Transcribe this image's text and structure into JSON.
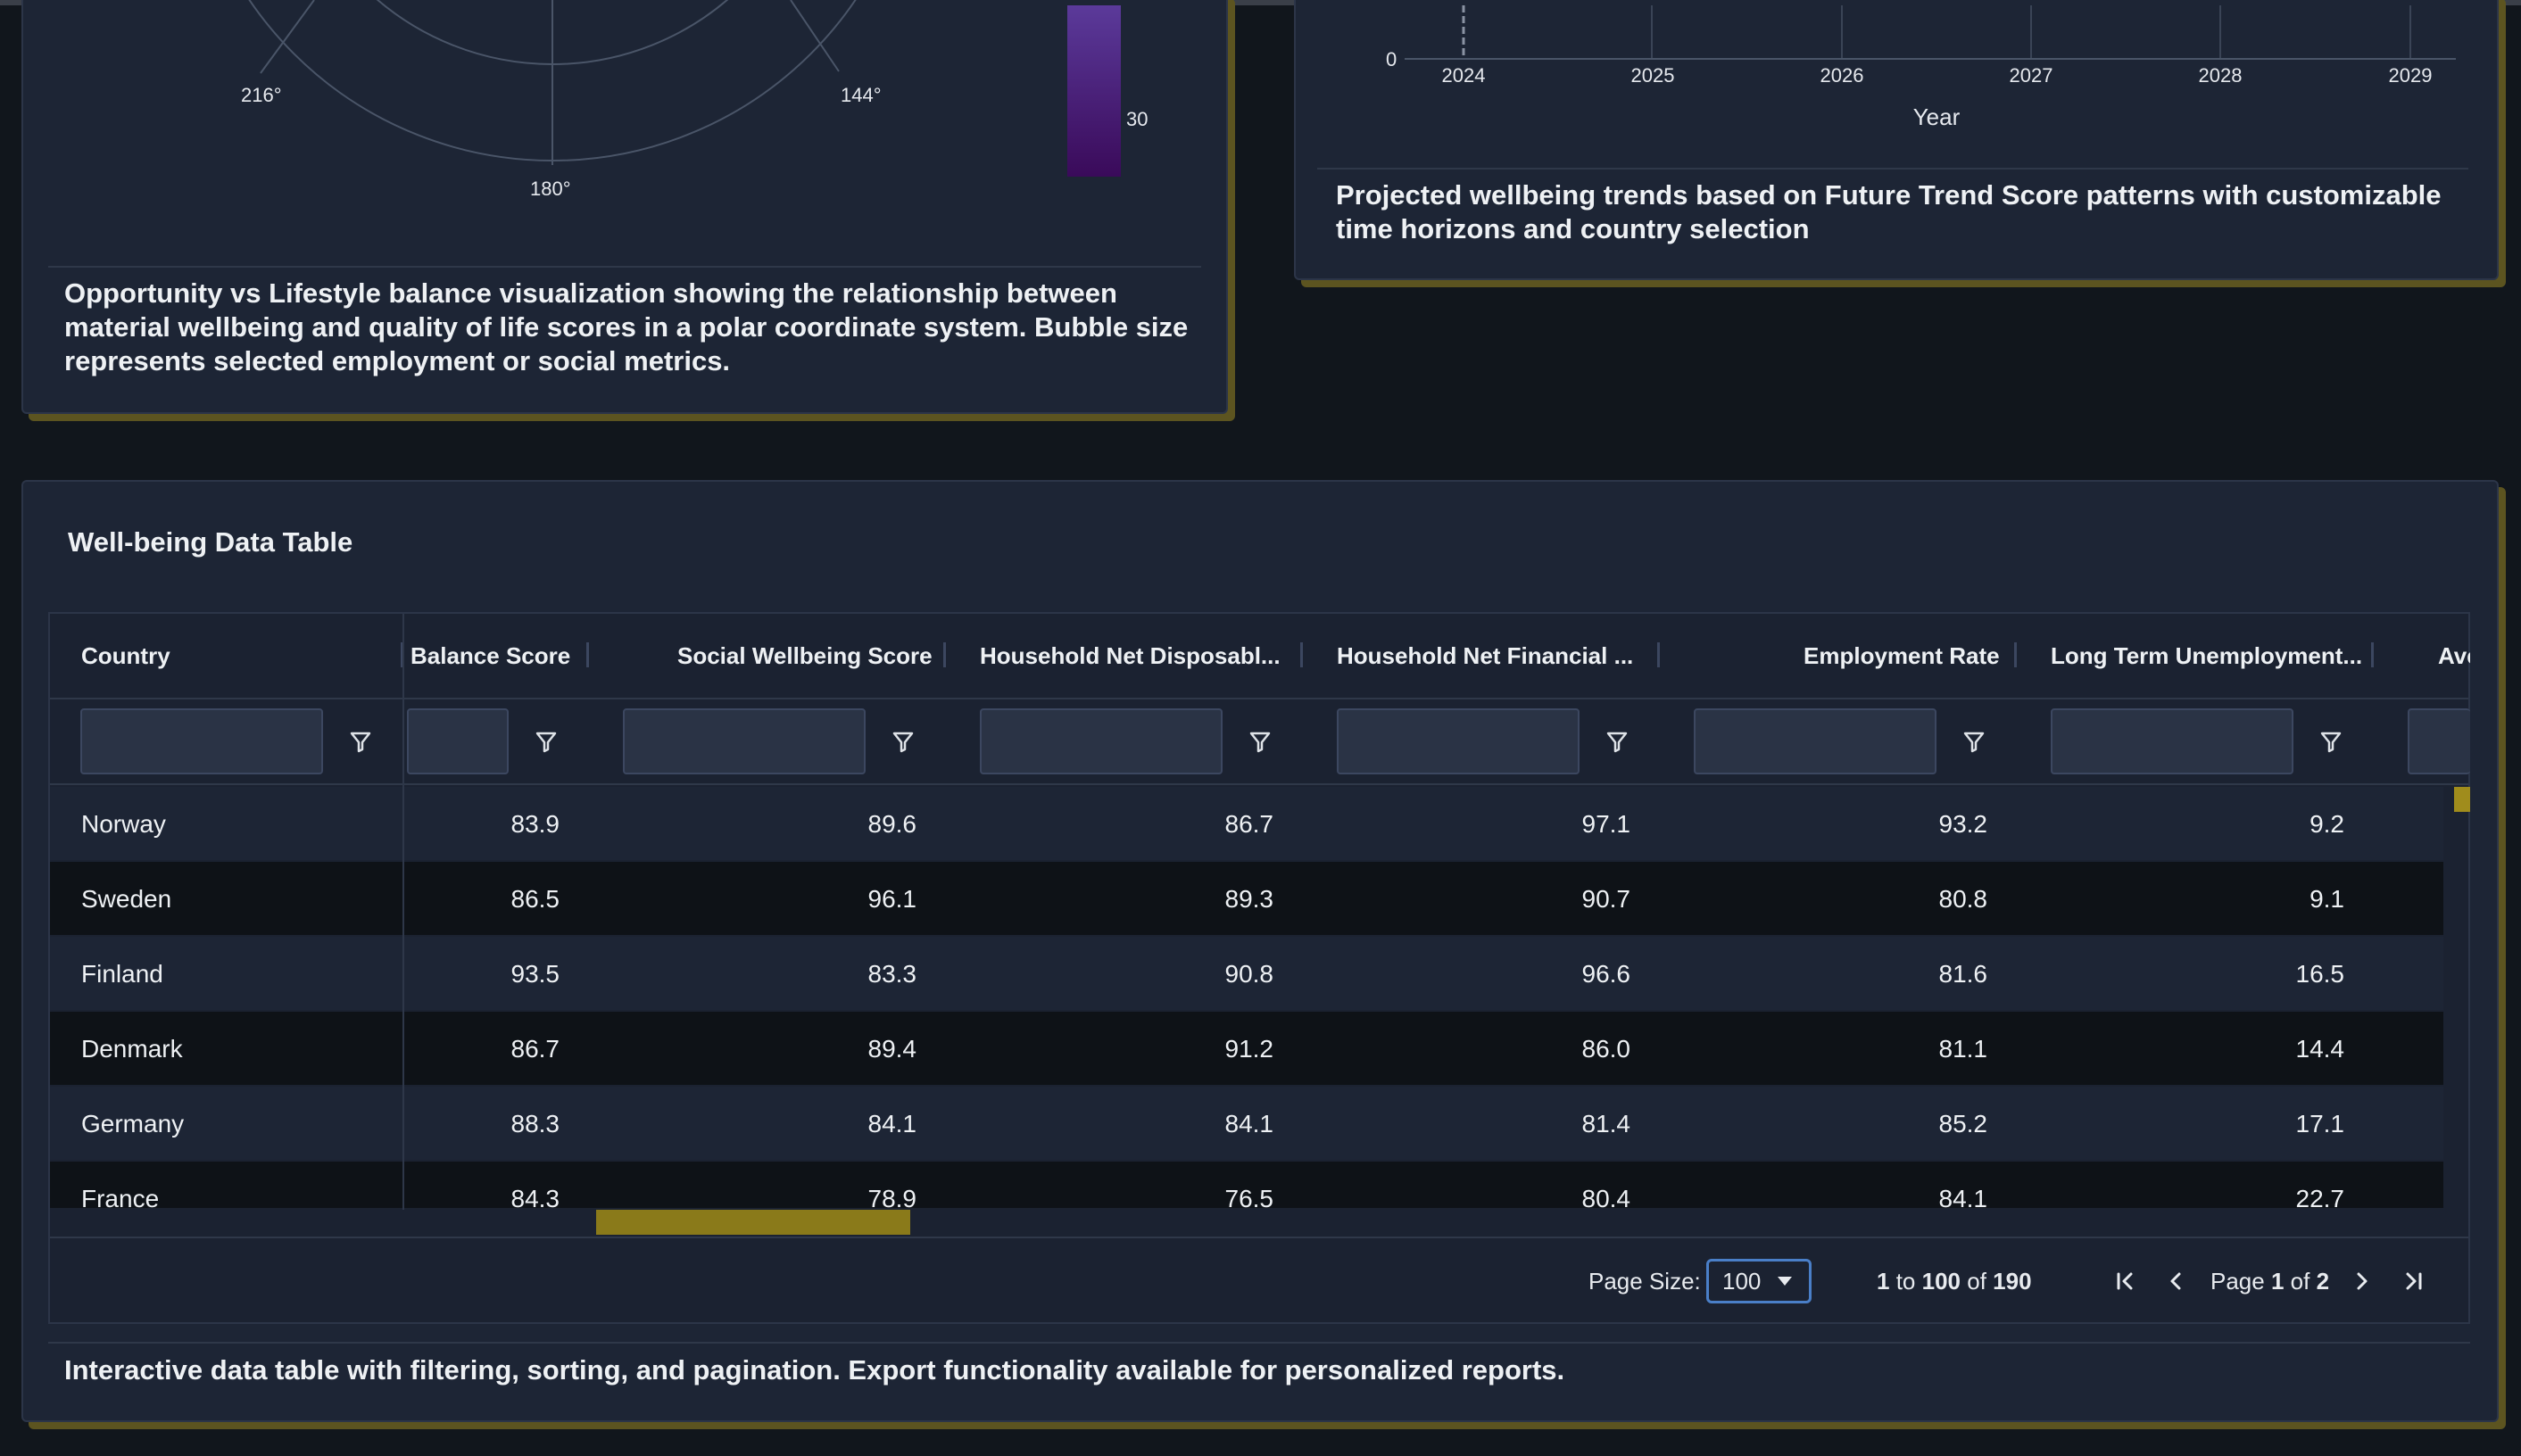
{
  "polar_card": {
    "angle_labels": [
      "216°",
      "144°",
      "180°"
    ],
    "colorbar_tick": "30",
    "description": "Opportunity vs Lifestyle balance visualization showing the relationship between material wellbeing and quality of life scores in a polar coordinate system. Bubble size represents selected employment or social metrics."
  },
  "trend_card": {
    "y_tick": "0",
    "x_ticks": [
      "2024",
      "2025",
      "2026",
      "2027",
      "2028",
      "2029"
    ],
    "x_label": "Year",
    "description": "Projected wellbeing trends based on Future Trend Score patterns with customizable time horizons and country selection"
  },
  "table_card": {
    "title": "Well-being Data Table",
    "columns": [
      "Country",
      "Balance Score",
      "Social Wellbeing Score",
      "Household Net Disposabl...",
      "Household Net Financial ...",
      "Employment Rate",
      "Long Term Unemployment...",
      "Ave"
    ],
    "rows": [
      {
        "country": "Norway",
        "values": [
          "83.9",
          "89.6",
          "86.7",
          "97.1",
          "93.2",
          "9.2"
        ]
      },
      {
        "country": "Sweden",
        "values": [
          "86.5",
          "96.1",
          "89.3",
          "90.7",
          "80.8",
          "9.1"
        ]
      },
      {
        "country": "Finland",
        "values": [
          "93.5",
          "83.3",
          "90.8",
          "96.6",
          "81.6",
          "16.5"
        ]
      },
      {
        "country": "Denmark",
        "values": [
          "86.7",
          "89.4",
          "91.2",
          "86.0",
          "81.1",
          "14.4"
        ]
      },
      {
        "country": "Germany",
        "values": [
          "88.3",
          "84.1",
          "84.1",
          "81.4",
          "85.2",
          "17.1"
        ]
      },
      {
        "country": "France",
        "values": [
          "84.3",
          "78.9",
          "76.5",
          "80.4",
          "84.1",
          "22.7"
        ]
      }
    ],
    "pagination": {
      "page_size_label": "Page Size:",
      "page_size_value": "100",
      "range_from": "1",
      "range_to_word": "to",
      "range_to": "100",
      "of_word": "of",
      "total": "190",
      "page_word": "Page",
      "page_current": "1",
      "page_total": "2"
    },
    "description": "Interactive data table with filtering, sorting, and pagination. Export functionality available for personalized reports."
  },
  "colors": {
    "background": "#11161c",
    "card": "#1d2535",
    "accent": "#a08c1c",
    "focus": "#4a7fc8"
  },
  "icons": [
    "filter-icon",
    "first-page-icon",
    "previous-page-icon",
    "next-page-icon",
    "last-page-icon",
    "dropdown-caret-icon"
  ]
}
